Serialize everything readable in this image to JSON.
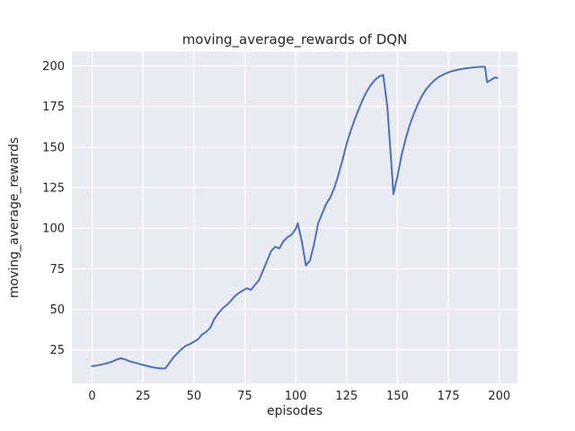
{
  "chart_data": {
    "type": "line",
    "title": "moving_average_rewards of DQN",
    "xlabel": "episodes",
    "ylabel": "moving_average_rewards",
    "xlim": [
      -9.95,
      208.95
    ],
    "ylim": [
      4.2,
      208.8
    ],
    "xticks": [
      0,
      25,
      50,
      75,
      100,
      125,
      150,
      175,
      200
    ],
    "yticks": [
      25,
      50,
      75,
      100,
      125,
      150,
      175,
      200
    ],
    "grid": true,
    "legend": "none",
    "plot_bg_color": "#eaeaf2",
    "grid_color": "#ffffff",
    "line_color": "#4c72b0",
    "text_color": "#262626",
    "series": [
      {
        "name": "moving_average_rewards",
        "x": [
          0,
          2,
          4,
          6,
          8,
          10,
          12,
          14,
          16,
          18,
          20,
          22,
          24,
          26,
          28,
          30,
          32,
          34,
          36,
          38,
          40,
          42,
          44,
          46,
          48,
          50,
          52,
          54,
          56,
          58,
          60,
          62,
          64,
          66,
          68,
          70,
          72,
          74,
          76,
          78,
          80,
          82,
          84,
          86,
          88,
          90,
          92,
          94,
          96,
          98,
          100,
          101,
          103,
          105,
          107,
          109,
          111,
          113,
          115,
          117,
          119,
          121,
          123,
          125,
          127,
          129,
          131,
          133,
          135,
          137,
          139,
          141,
          143,
          145,
          147,
          148,
          150,
          152,
          154,
          156,
          158,
          160,
          162,
          164,
          166,
          168,
          170,
          173,
          176,
          179,
          182,
          185,
          188,
          191,
          193,
          194,
          196,
          198,
          199
        ],
        "y": [
          15.0,
          15.2,
          15.8,
          16.3,
          17.0,
          17.8,
          19.0,
          19.8,
          19.2,
          18.2,
          17.4,
          16.8,
          16.0,
          15.4,
          14.8,
          14.2,
          13.8,
          13.5,
          13.6,
          17.0,
          20.5,
          23.0,
          25.5,
          27.5,
          28.5,
          30.0,
          31.5,
          34.5,
          36.0,
          38.5,
          44.0,
          47.5,
          50.5,
          52.5,
          55.0,
          58.0,
          60.0,
          61.5,
          63.0,
          62.0,
          65.0,
          68.0,
          74.0,
          80.0,
          86.0,
          88.5,
          87.5,
          92.0,
          94.5,
          96.0,
          99.5,
          103.0,
          92.0,
          77.0,
          80.0,
          90.0,
          103.0,
          109.0,
          115.0,
          119.0,
          125.0,
          133.0,
          142.0,
          152.0,
          160.0,
          167.0,
          173.5,
          179.5,
          184.5,
          188.5,
          191.5,
          193.5,
          194.5,
          175.0,
          140.0,
          121.0,
          132.0,
          145.0,
          155.0,
          163.5,
          170.5,
          176.5,
          181.5,
          185.5,
          188.5,
          191.0,
          193.0,
          195.0,
          196.5,
          197.5,
          198.3,
          198.8,
          199.2,
          199.5,
          199.5,
          190.0,
          191.5,
          193.0,
          192.5
        ]
      }
    ]
  }
}
